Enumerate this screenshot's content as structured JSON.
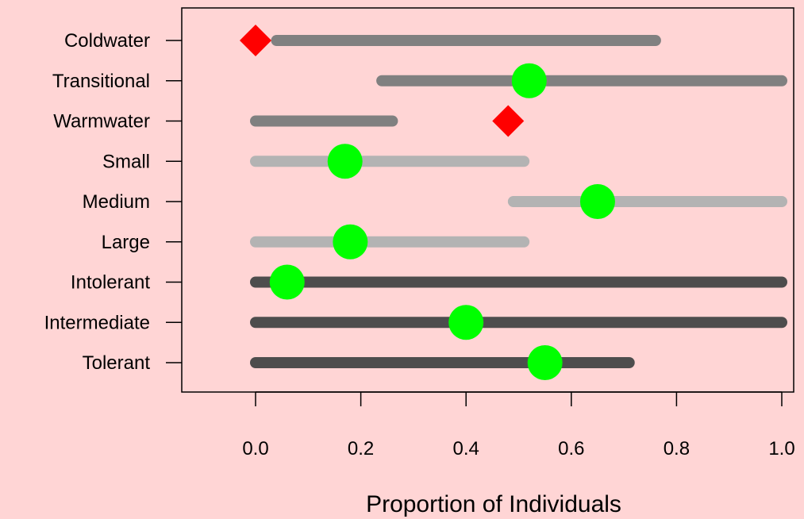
{
  "chart_data": {
    "type": "range-dot",
    "xlabel": "Proportion of Individuals",
    "xlim": [
      -0.14,
      1.03
    ],
    "x_ticks": [
      {
        "value": 0.0,
        "label": "0.0"
      },
      {
        "value": 0.2,
        "label": "0.2"
      },
      {
        "value": 0.4,
        "label": "0.4"
      },
      {
        "value": 0.6,
        "label": "0.6"
      },
      {
        "value": 0.8,
        "label": "0.8"
      },
      {
        "value": 1.0,
        "label": "1.0"
      }
    ],
    "grid": false,
    "rows": [
      {
        "label": "Coldwater",
        "range": [
          0.04,
          0.76
        ],
        "value": 0.0,
        "marker": "diamond",
        "bar_color": "#808080",
        "marker_color": "#FF0000"
      },
      {
        "label": "Transitional",
        "range": [
          0.24,
          1.0
        ],
        "value": 0.52,
        "marker": "circle",
        "bar_color": "#808080",
        "marker_color": "#00FF00"
      },
      {
        "label": "Warmwater",
        "range": [
          0.0,
          0.26
        ],
        "value": 0.48,
        "marker": "diamond",
        "bar_color": "#808080",
        "marker_color": "#FF0000"
      },
      {
        "label": "Small",
        "range": [
          0.0,
          0.51
        ],
        "value": 0.17,
        "marker": "circle",
        "bar_color": "#B3B3B3",
        "marker_color": "#00FF00"
      },
      {
        "label": "Medium",
        "range": [
          0.49,
          1.0
        ],
        "value": 0.65,
        "marker": "circle",
        "bar_color": "#B3B3B3",
        "marker_color": "#00FF00"
      },
      {
        "label": "Large",
        "range": [
          0.0,
          0.51
        ],
        "value": 0.18,
        "marker": "circle",
        "bar_color": "#B3B3B3",
        "marker_color": "#00FF00"
      },
      {
        "label": "Intolerant",
        "range": [
          0.0,
          1.0
        ],
        "value": 0.06,
        "marker": "circle",
        "bar_color": "#4D4D4D",
        "marker_color": "#00FF00"
      },
      {
        "label": "Intermediate",
        "range": [
          0.0,
          1.0
        ],
        "value": 0.4,
        "marker": "circle",
        "bar_color": "#4D4D4D",
        "marker_color": "#00FF00"
      },
      {
        "label": "Tolerant",
        "range": [
          0.0,
          0.71
        ],
        "value": 0.55,
        "marker": "circle",
        "bar_color": "#4D4D4D",
        "marker_color": "#00FF00"
      }
    ]
  },
  "colors": {
    "background": "#FFD5D5",
    "axis": "#000000"
  }
}
